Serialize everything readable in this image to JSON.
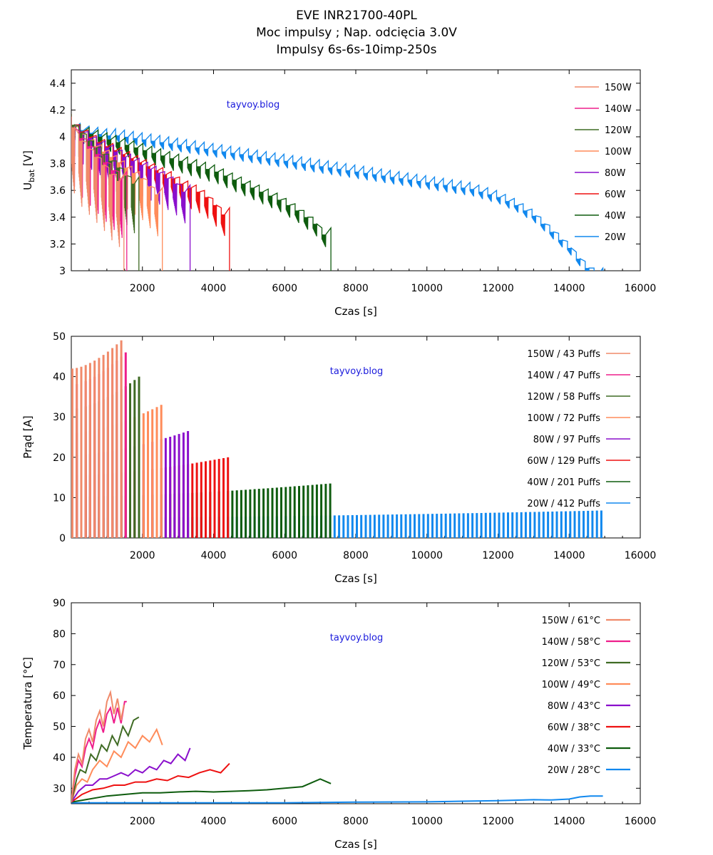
{
  "title_lines": [
    "EVE INR21700-40PL",
    "Moc impulsy ; Nap. odcięcia 3.0V",
    "Impulsy 6s-6s-10imp-250s"
  ],
  "watermark": "tayvoy.blog",
  "colors": {
    "150W": "#f08a6a",
    "140W": "#ee1e8c",
    "120W": "#3f6b24",
    "100W": "#ff8c5a",
    "80W": "#8a0fcc",
    "60W": "#ee1111",
    "40W": "#0e5c0e",
    "20W": "#1188ee",
    "watermark": "#1a1adc"
  },
  "chart_data": [
    {
      "type": "line",
      "id": "voltage",
      "xlabel": "Czas [s]",
      "ylabel": "U",
      "ylabel_sub": "bat",
      "ylabel_unit": " [V]",
      "xlim": [
        0,
        16000
      ],
      "ylim": [
        3.0,
        4.5
      ],
      "xticks": [
        2000,
        4000,
        6000,
        8000,
        10000,
        12000,
        14000,
        16000
      ],
      "yticks": [
        3,
        3.2,
        3.4,
        3.6,
        3.8,
        4,
        4.2,
        4.4
      ],
      "ytick_labels": [
        "3",
        "3.2",
        "3.4",
        "3.6",
        "3.8",
        "4",
        "4.2",
        "4.4"
      ],
      "legend_position": "top-right",
      "series": [
        {
          "name": "150W",
          "key": "150W",
          "end_time": 1480,
          "rest_v": [
            4.1,
            4.0,
            3.94,
            3.88,
            3.82,
            3.75,
            3.7
          ],
          "sag": 0.55
        },
        {
          "name": "140W",
          "key": "140W",
          "end_time": 1560,
          "rest_v": [
            4.1,
            4.02,
            3.96,
            3.9,
            3.84,
            3.78,
            3.72
          ],
          "sag": 0.5
        },
        {
          "name": "120W",
          "key": "120W",
          "end_time": 1900,
          "rest_v": [
            4.12,
            4.06,
            4.0,
            3.95,
            3.9,
            3.85,
            3.8,
            3.74,
            3.68
          ],
          "sag": 0.42
        },
        {
          "name": "100W",
          "key": "100W",
          "end_time": 2560,
          "rest_v": [
            4.12,
            4.05,
            4.0,
            3.96,
            3.92,
            3.88,
            3.84,
            3.8,
            3.76,
            3.72,
            3.66,
            3.6
          ],
          "sag": 0.36
        },
        {
          "name": "80W",
          "key": "80W",
          "end_time": 3340,
          "rest_v": [
            4.12,
            4.06,
            4.02,
            3.98,
            3.95,
            3.92,
            3.88,
            3.85,
            3.82,
            3.79,
            3.76,
            3.72,
            3.68,
            3.62
          ],
          "sag": 0.28
        },
        {
          "name": "60W",
          "key": "60W",
          "end_time": 4450,
          "rest_v": [
            4.12,
            4.07,
            4.03,
            3.99,
            3.96,
            3.93,
            3.9,
            3.87,
            3.84,
            3.81,
            3.78,
            3.75,
            3.72,
            3.68,
            3.65,
            3.62,
            3.58,
            3.52,
            3.45
          ],
          "sag": 0.2
        },
        {
          "name": "40W",
          "key": "40W",
          "end_time": 7300,
          "rest_v": [
            4.1,
            4.07,
            4.05,
            4.03,
            4.01,
            3.99,
            3.97,
            3.95,
            3.93,
            3.91,
            3.89,
            3.87,
            3.85,
            3.83,
            3.81,
            3.79,
            3.77,
            3.74,
            3.71,
            3.68,
            3.65,
            3.62,
            3.59,
            3.56,
            3.52,
            3.48,
            3.43,
            3.38,
            3.3
          ],
          "sag": 0.13
        },
        {
          "name": "20W",
          "key": "20W",
          "end_time": 14950,
          "rest_v": [
            4.1,
            4.08,
            4.06,
            4.05,
            4.04,
            4.04,
            4.03,
            4.02,
            4.01,
            4.0,
            3.99,
            3.98,
            3.97,
            3.96,
            3.95,
            3.94,
            3.93,
            3.92,
            3.91,
            3.9,
            3.89,
            3.88,
            3.87,
            3.86,
            3.85,
            3.84,
            3.83,
            3.82,
            3.81,
            3.8,
            3.79,
            3.78,
            3.77,
            3.76,
            3.75,
            3.74,
            3.73,
            3.72,
            3.71,
            3.7,
            3.69,
            3.68,
            3.67,
            3.66,
            3.65,
            3.64,
            3.62,
            3.6,
            3.58,
            3.55,
            3.52,
            3.48,
            3.44,
            3.38,
            3.32,
            3.26,
            3.2,
            3.12,
            3.05,
            3.0
          ],
          "sag": 0.09
        }
      ]
    },
    {
      "type": "bar",
      "id": "current",
      "xlabel": "Czas [s]",
      "ylabel": "Prąd [A]",
      "xlim": [
        0,
        16000
      ],
      "ylim": [
        0,
        50
      ],
      "xticks": [
        2000,
        4000,
        6000,
        8000,
        10000,
        12000,
        14000,
        16000
      ],
      "yticks": [
        0,
        10,
        20,
        30,
        40,
        50
      ],
      "ytick_labels": [
        "0",
        "10",
        "20",
        "30",
        "40",
        "50"
      ],
      "legend_position": "top-right",
      "series": [
        {
          "name": "150W  /  43 Puffs",
          "key": "150W",
          "end_time": 1480,
          "i_start": 42,
          "i_end": 49
        },
        {
          "name": "140W  /  47 Puffs",
          "key": "140W",
          "end_time": 1560,
          "i_start": 38,
          "i_end": 46
        },
        {
          "name": "120W  /  58 Puffs",
          "key": "120W",
          "end_time": 1900,
          "i_start": 32,
          "i_end": 40
        },
        {
          "name": "100W  /  72 Puffs",
          "key": "100W",
          "end_time": 2560,
          "i_start": 26,
          "i_end": 33
        },
        {
          "name": "80W  /  97 Puffs",
          "key": "80W",
          "end_time": 3340,
          "i_start": 20.5,
          "i_end": 26.5
        },
        {
          "name": "60W  /  129 Puffs",
          "key": "60W",
          "end_time": 4450,
          "i_start": 15.5,
          "i_end": 20
        },
        {
          "name": "40W  /  201 Puffs",
          "key": "40W",
          "end_time": 7300,
          "i_start": 10.2,
          "i_end": 13.5
        },
        {
          "name": "20W  /  412 Puffs",
          "key": "20W",
          "end_time": 14950,
          "i_start": 5.0,
          "i_end": 6.8
        }
      ]
    },
    {
      "type": "line",
      "id": "temperature",
      "xlabel": "Czas [s]",
      "ylabel": "Temperatura [°C]",
      "xlim": [
        0,
        16000
      ],
      "ylim": [
        25,
        90
      ],
      "xticks": [
        2000,
        4000,
        6000,
        8000,
        10000,
        12000,
        14000,
        16000
      ],
      "yticks": [
        30,
        40,
        50,
        60,
        70,
        80,
        90
      ],
      "ytick_labels": [
        "30",
        "40",
        "50",
        "60",
        "70",
        "80",
        "90"
      ],
      "legend_position": "top-right",
      "series": [
        {
          "name": "150W / 61°C",
          "key": "150W",
          "x": [
            0,
            100,
            200,
            300,
            400,
            500,
            600,
            700,
            800,
            900,
            1000,
            1100,
            1200,
            1300,
            1400,
            1480
          ],
          "y": [
            25.5,
            36,
            41,
            38,
            46,
            49,
            45,
            52,
            55,
            50,
            58,
            61,
            54,
            59,
            52,
            57
          ]
        },
        {
          "name": "140W / 58°C",
          "key": "140W",
          "x": [
            0,
            100,
            200,
            300,
            400,
            500,
            600,
            700,
            800,
            900,
            1000,
            1100,
            1200,
            1300,
            1400,
            1500,
            1560
          ],
          "y": [
            25.5,
            34,
            39,
            37,
            43,
            46,
            43,
            49,
            52,
            48,
            54,
            56,
            51,
            56,
            51,
            58,
            58
          ]
        },
        {
          "name": "120W / 53°C",
          "key": "120W",
          "x": [
            0,
            150,
            250,
            400,
            550,
            700,
            850,
            1000,
            1150,
            1300,
            1450,
            1600,
            1750,
            1900
          ],
          "y": [
            25.5,
            33,
            36,
            35,
            41,
            39,
            44,
            42,
            47,
            44,
            50,
            47,
            52,
            53
          ]
        },
        {
          "name": "100W / 49°C",
          "key": "100W",
          "x": [
            0,
            150,
            300,
            450,
            600,
            800,
            1000,
            1200,
            1400,
            1600,
            1800,
            2000,
            2200,
            2400,
            2560
          ],
          "y": [
            25.5,
            31,
            33,
            32,
            36,
            39,
            37,
            42,
            40,
            45,
            43,
            47,
            45,
            49,
            44
          ]
        },
        {
          "name": "80W / 43°C",
          "key": "80W",
          "x": [
            0,
            200,
            400,
            600,
            800,
            1000,
            1200,
            1400,
            1600,
            1800,
            2000,
            2200,
            2400,
            2600,
            2800,
            3000,
            3200,
            3340
          ],
          "y": [
            25.5,
            29,
            31,
            31,
            33,
            33,
            34,
            35,
            34,
            36,
            35,
            37,
            36,
            39,
            38,
            41,
            39,
            43
          ]
        },
        {
          "name": "60W / 38°C",
          "key": "60W",
          "x": [
            0,
            300,
            600,
            900,
            1200,
            1500,
            1800,
            2100,
            2400,
            2700,
            3000,
            3300,
            3600,
            3900,
            4200,
            4450
          ],
          "y": [
            25.5,
            28,
            29.5,
            30,
            31,
            31,
            32,
            32,
            33,
            32.5,
            34,
            33.5,
            35,
            36,
            35,
            38
          ]
        },
        {
          "name": "40W / 33°C",
          "key": "40W",
          "x": [
            0,
            500,
            1000,
            1500,
            2000,
            2500,
            3000,
            3500,
            4000,
            4500,
            5000,
            5500,
            6000,
            6500,
            7000,
            7300
          ],
          "y": [
            25.5,
            26.5,
            27.5,
            28,
            28.5,
            28.5,
            28.8,
            29,
            28.8,
            29,
            29.2,
            29.5,
            30,
            30.5,
            33,
            31.5
          ]
        },
        {
          "name": "20W / 28°C",
          "key": "20W",
          "x": [
            0,
            2000,
            4000,
            6000,
            8000,
            10000,
            11000,
            12000,
            13000,
            13500,
            14000,
            14300,
            14600,
            14950
          ],
          "y": [
            25.3,
            25.3,
            25.3,
            25.3,
            25.5,
            25.6,
            25.8,
            26,
            26.3,
            26.2,
            26.5,
            27.2,
            27.5,
            27.5
          ]
        }
      ]
    }
  ]
}
